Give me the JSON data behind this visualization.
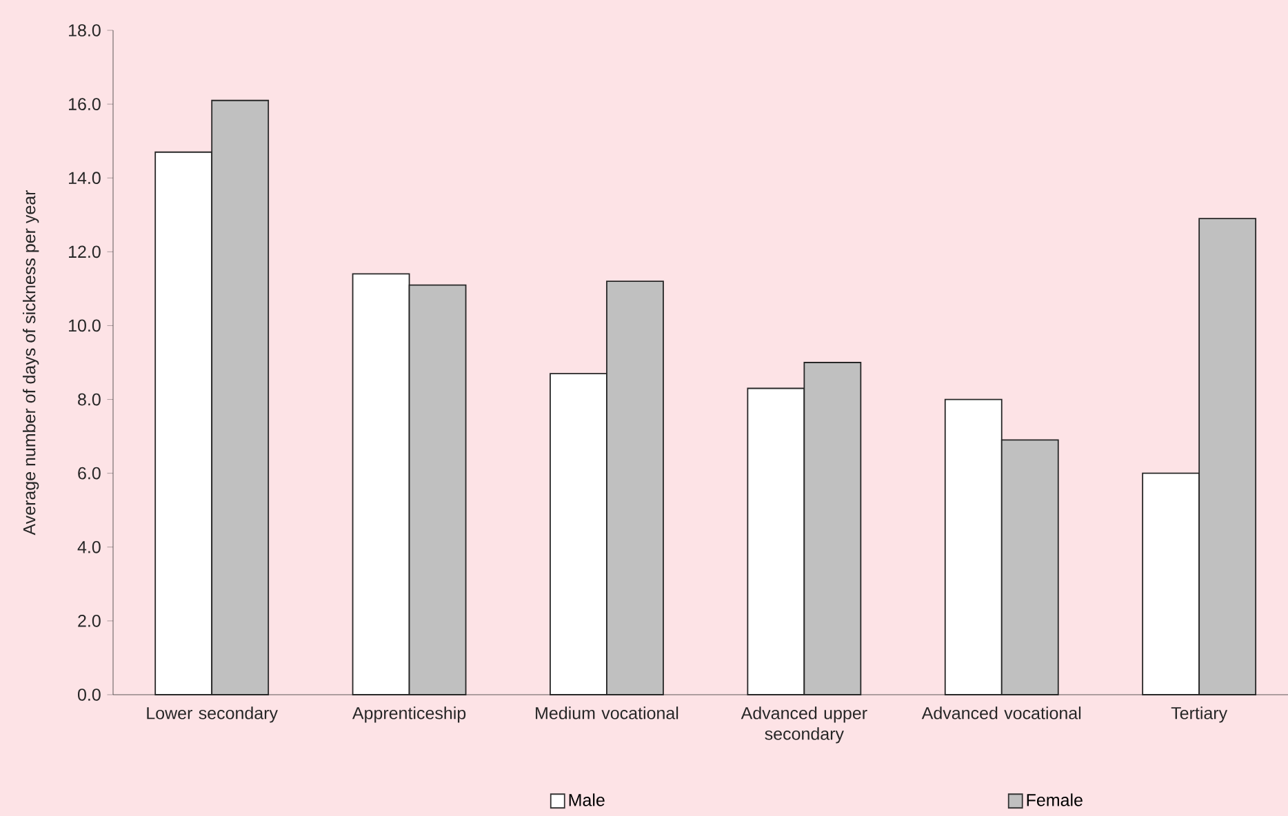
{
  "chart_data": {
    "type": "bar",
    "ylabel": "Average number of days of sickness per year",
    "categories": [
      "Lower secondary",
      "Apprenticeship",
      "Medium vocational",
      "Advanced upper secondary",
      "Advanced vocational",
      "Tertiary"
    ],
    "series": [
      {
        "name": "Male",
        "color": "#ffffff",
        "values": [
          14.7,
          11.4,
          8.7,
          8.3,
          8.0,
          6.0
        ]
      },
      {
        "name": "Female",
        "color": "#c0c0c0",
        "values": [
          16.1,
          11.1,
          11.2,
          9.0,
          6.9,
          12.9
        ]
      }
    ],
    "ylim": [
      0,
      18
    ],
    "yticks": [
      {
        "value": 0,
        "label": "0.0"
      },
      {
        "value": 2,
        "label": "2.0"
      },
      {
        "value": 4,
        "label": "4.0"
      },
      {
        "value": 6,
        "label": "6.0"
      },
      {
        "value": 8,
        "label": "8.0"
      },
      {
        "value": 10,
        "label": "10.0"
      },
      {
        "value": 12,
        "label": "12.0"
      },
      {
        "value": 14,
        "label": "14.0"
      },
      {
        "value": 16,
        "label": "16.0"
      },
      {
        "value": 18,
        "label": "18.0"
      }
    ],
    "grid": false,
    "legend": "bottom"
  }
}
